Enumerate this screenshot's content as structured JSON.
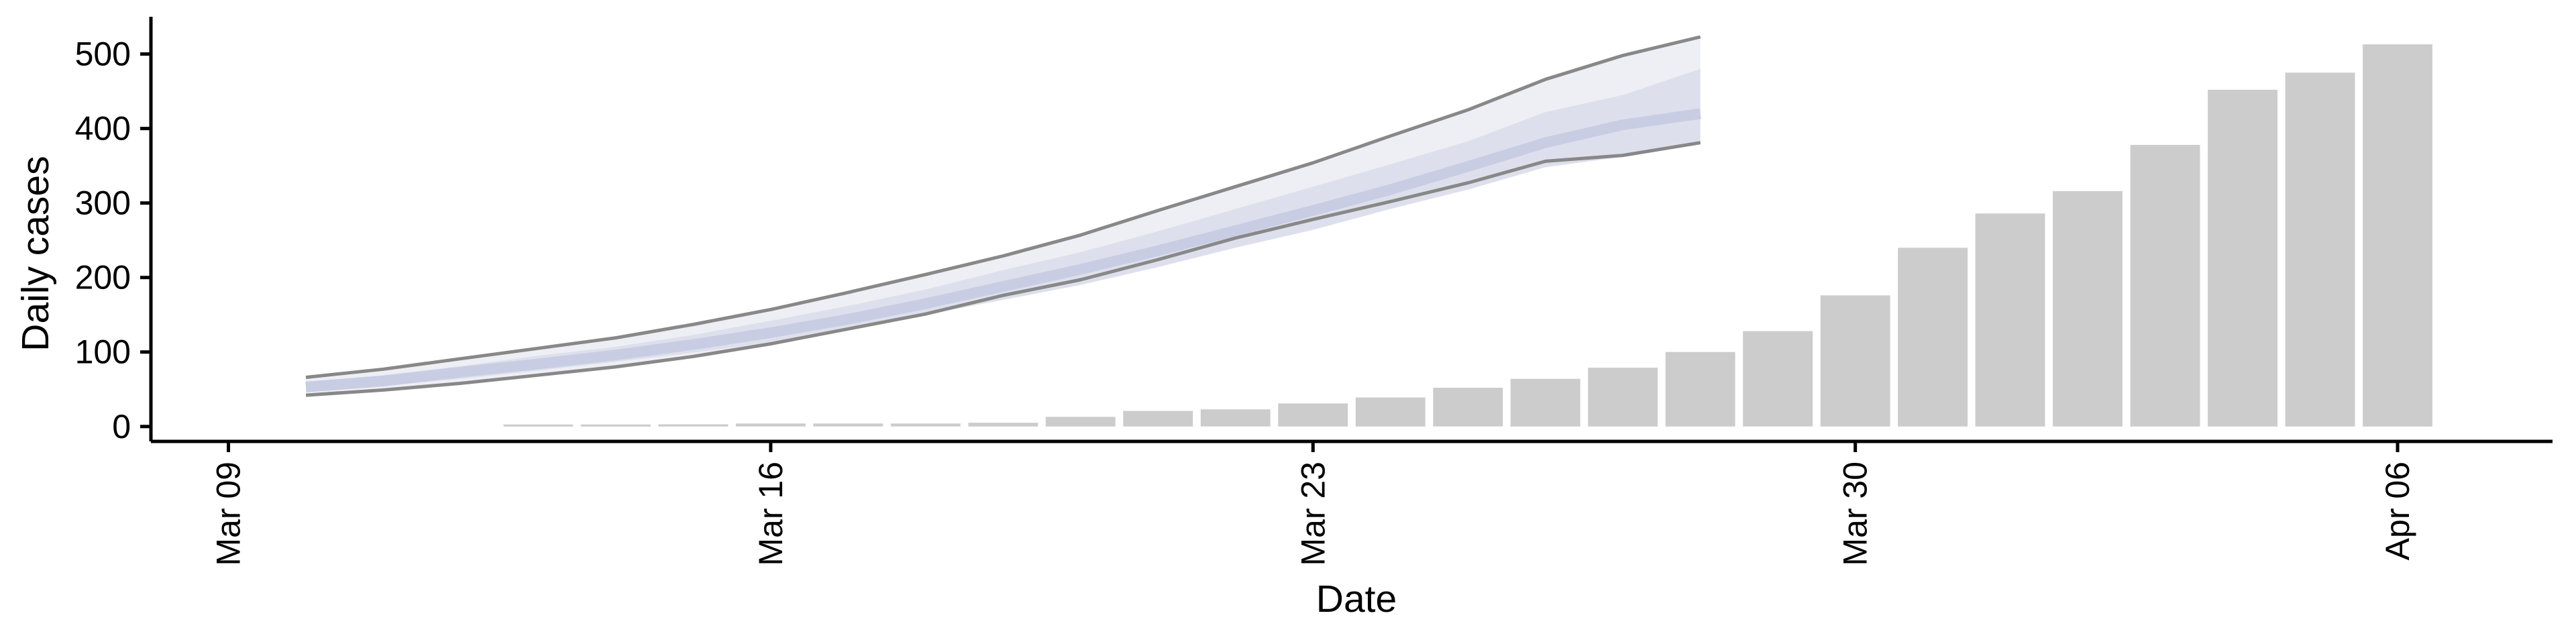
{
  "chart_data": {
    "type": "bar",
    "xlabel": "Date",
    "ylabel": "Daily cases",
    "x_ticks": [
      "Mar 09",
      "Mar 16",
      "Mar 23",
      "Mar 30",
      "Apr 06"
    ],
    "x_tick_dates": [
      "2020-03-09",
      "2020-03-16",
      "2020-03-23",
      "2020-03-30",
      "2020-04-06"
    ],
    "y_ticks": [
      0,
      100,
      200,
      300,
      400,
      500
    ],
    "ylim": [
      -20,
      550
    ],
    "xlim": [
      "2020-03-08",
      "2020-04-08"
    ],
    "grid": false,
    "series": [
      {
        "kind": "bar",
        "color": "#cccccc",
        "dates": [
          "2020-03-13",
          "2020-03-14",
          "2020-03-15",
          "2020-03-16",
          "2020-03-17",
          "2020-03-18",
          "2020-03-19",
          "2020-03-20",
          "2020-03-21",
          "2020-03-22",
          "2020-03-23",
          "2020-03-24",
          "2020-03-25",
          "2020-03-26",
          "2020-03-27",
          "2020-03-28",
          "2020-03-29",
          "2020-03-30",
          "2020-03-31",
          "2020-04-01",
          "2020-04-02",
          "2020-04-03",
          "2020-04-04",
          "2020-04-05",
          "2020-04-06"
        ],
        "values": [
          1,
          2,
          3,
          4,
          4,
          4,
          5,
          13,
          21,
          23,
          31,
          39,
          52,
          64,
          79,
          100,
          128,
          176,
          240,
          286,
          316,
          378,
          452,
          475,
          513
        ]
      },
      {
        "kind": "forecast_band",
        "colors": {
          "outer": "#eeeff4",
          "inner": "#dde0ec",
          "center": "#c8cde4",
          "edge": "#888888"
        },
        "dates": [
          "2020-03-10",
          "2020-03-11",
          "2020-03-12",
          "2020-03-13",
          "2020-03-14",
          "2020-03-15",
          "2020-03-16",
          "2020-03-17",
          "2020-03-18",
          "2020-03-19",
          "2020-03-20",
          "2020-03-21",
          "2020-03-22",
          "2020-03-23",
          "2020-03-24",
          "2020-03-25",
          "2020-03-26",
          "2020-03-27",
          "2020-03-28"
        ],
        "upper": [
          66,
          77,
          91,
          105,
          119,
          137,
          157,
          180,
          204,
          229,
          257,
          290,
          322,
          354,
          390,
          425,
          466,
          498,
          523
        ],
        "upper_inner": [
          60,
          69,
          81,
          95,
          107,
          123,
          142,
          162,
          184,
          210,
          234,
          262,
          292,
          322,
          352,
          383,
          422,
          445,
          480
        ],
        "median": [
          53,
          61,
          73,
          84,
          96,
          110,
          126,
          144,
          165,
          188,
          211,
          236,
          263,
          290,
          318,
          349,
          381,
          405,
          420
        ],
        "lower_inner": [
          47,
          55,
          64,
          75,
          87,
          99,
          113,
          130,
          150,
          170,
          190,
          214,
          240,
          264,
          292,
          318,
          348,
          362,
          380
        ],
        "lower": [
          42,
          49,
          58,
          69,
          80,
          94,
          111,
          131,
          151,
          176,
          197,
          224,
          253,
          278,
          302,
          327,
          356,
          364,
          381
        ]
      }
    ]
  }
}
